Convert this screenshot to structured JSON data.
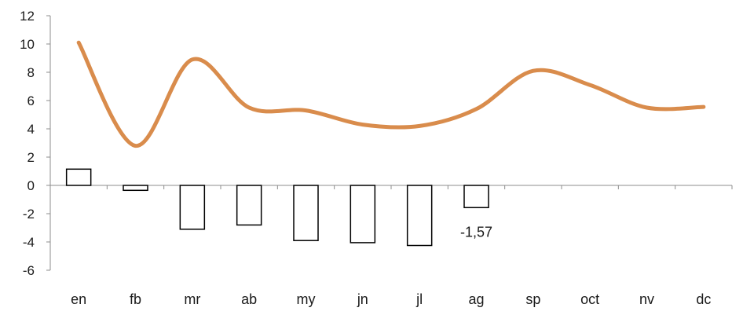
{
  "chart_data": {
    "type": "bar",
    "categories": [
      "en",
      "fb",
      "mr",
      "ab",
      "my",
      "jn",
      "jl",
      "ag",
      "sp",
      "oct",
      "nv",
      "dc"
    ],
    "ylim": [
      -6,
      12
    ],
    "y_ticks": [
      12,
      10,
      8,
      6,
      4,
      2,
      0,
      -2,
      -4,
      -6
    ],
    "y_tick_labels": [
      "12",
      "10",
      "8",
      "6",
      "4",
      "2",
      "0",
      "-2",
      "-4",
      "-6"
    ],
    "grid": false,
    "series": [
      {
        "kind": "bar",
        "values": [
          1.15,
          -0.35,
          -3.1,
          -2.8,
          -3.9,
          -4.05,
          -4.25,
          -1.57,
          null,
          null,
          null,
          null
        ],
        "color": "#000000",
        "fill": "#ffffff"
      },
      {
        "kind": "line",
        "smooth": true,
        "values": [
          10.1,
          2.8,
          8.9,
          5.5,
          5.3,
          4.3,
          4.2,
          5.4,
          8.1,
          7.1,
          5.5,
          5.55
        ],
        "color": "#D98C4C"
      }
    ],
    "data_labels": [
      {
        "category": "ag",
        "text": "-1,57"
      }
    ]
  }
}
